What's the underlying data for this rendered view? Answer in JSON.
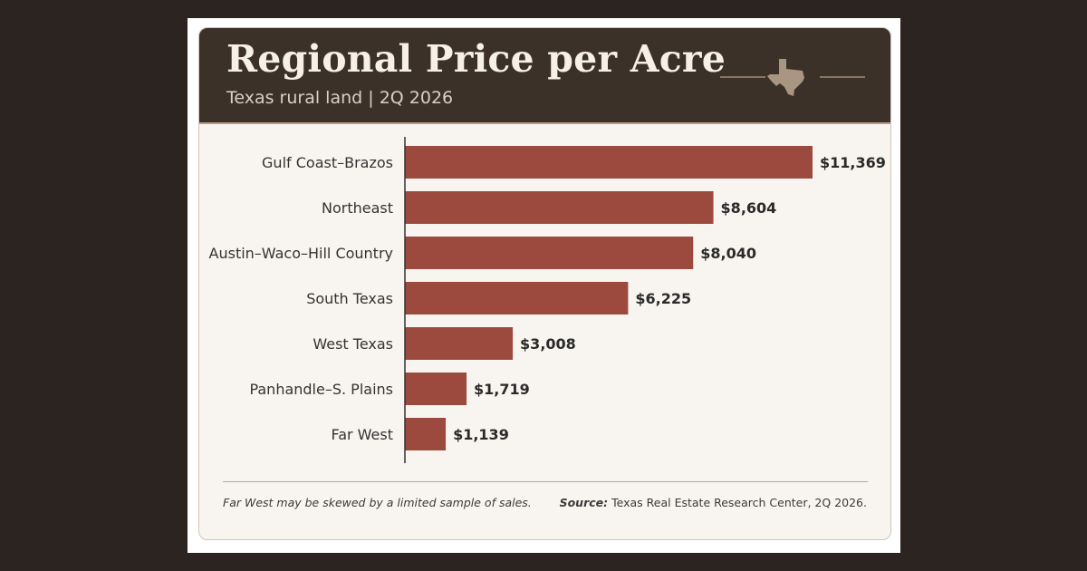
{
  "header": {
    "title": "Regional Price per Acre",
    "subtitle": "Texas rural land | 2Q 2026",
    "decoration_icon": "texas-state-outline-icon"
  },
  "footer": {
    "note": "Far West may be skewed by a limited sample of sales.",
    "source_label": "Source:",
    "source_text": "Texas Real Estate Research Center, 2Q 2026."
  },
  "colors": {
    "header_bg": "#3c3129",
    "bar": "#9c4a3e",
    "card_bg": "#f8f5f0",
    "accent": "#b79f86"
  },
  "chart_data": {
    "type": "bar",
    "orientation": "horizontal",
    "title": "Regional Price per Acre",
    "subtitle": "Texas rural land | 2Q 2026",
    "categories": [
      "Gulf Coast–Brazos",
      "Northeast",
      "Austin–Waco–Hill Country",
      "South Texas",
      "West Texas",
      "Panhandle–S. Plains",
      "Far West"
    ],
    "values": [
      11369,
      8604,
      8040,
      6225,
      3008,
      1719,
      1139
    ],
    "value_labels": [
      "$11,369",
      "$8,604",
      "$8,040",
      "$6,225",
      "$3,008",
      "$1,719",
      "$1,139"
    ],
    "xlabel": "",
    "ylabel": "",
    "xlim": [
      0,
      11369
    ],
    "grid": false,
    "legend": "none"
  }
}
